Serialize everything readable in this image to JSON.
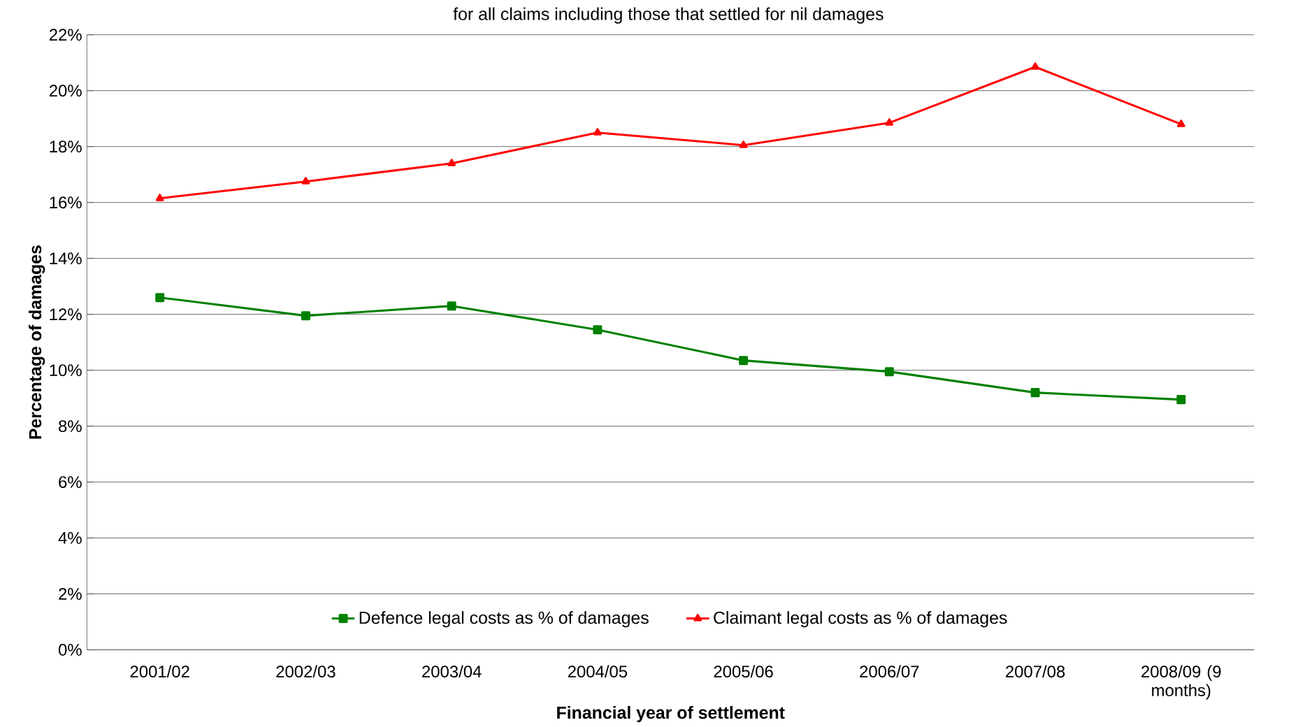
{
  "chart_data": {
    "type": "line",
    "title": "for all claims including those that settled for nil damages",
    "xlabel": "Financial year of settlement",
    "ylabel": "Percentage of damages",
    "categories": [
      "2001/02",
      "2002/03",
      "2003/04",
      "2004/05",
      "2005/06",
      "2006/07",
      "2007/08",
      "2008/09 (9 months)"
    ],
    "series": [
      {
        "name": "Defence legal costs as % of damages",
        "color": "#008000",
        "marker": "square",
        "values": [
          12.6,
          11.95,
          12.3,
          11.45,
          10.35,
          9.95,
          9.2,
          8.95
        ]
      },
      {
        "name": "Claimant legal costs as % of damages",
        "color": "#ff0000",
        "marker": "triangle",
        "values": [
          16.15,
          16.75,
          17.4,
          18.5,
          18.05,
          18.85,
          20.85,
          18.8
        ]
      }
    ],
    "ylim": [
      0,
      22
    ],
    "yticks": [
      {
        "value": 0,
        "label": "0%"
      },
      {
        "value": 2,
        "label": "2%"
      },
      {
        "value": 4,
        "label": "4%"
      },
      {
        "value": 6,
        "label": "6%"
      },
      {
        "value": 8,
        "label": "8%"
      },
      {
        "value": 10,
        "label": "10%"
      },
      {
        "value": 12,
        "label": "12%"
      },
      {
        "value": 14,
        "label": "14%"
      },
      {
        "value": 16,
        "label": "16%"
      },
      {
        "value": 18,
        "label": "18%"
      },
      {
        "value": 20,
        "label": "20%"
      },
      {
        "value": 22,
        "label": "22%"
      }
    ],
    "grid": "y",
    "legend": "bottom",
    "line_style": "solid"
  }
}
